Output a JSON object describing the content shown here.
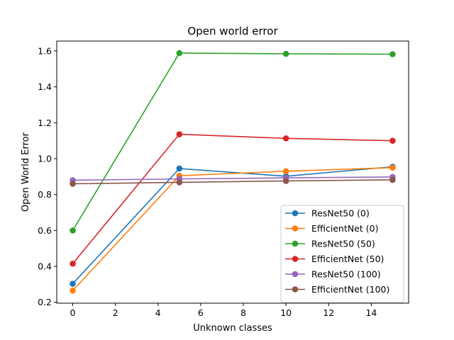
{
  "chart_data": {
    "type": "line",
    "title": "Open world error",
    "xlabel": "Unknown classes",
    "ylabel": "Open World Error",
    "x": [
      0,
      5,
      10,
      15
    ],
    "xlim": [
      -0.75,
      15.75
    ],
    "ylim": [
      0.195,
      1.655
    ],
    "xticks": [
      0,
      2,
      4,
      6,
      8,
      10,
      12,
      14
    ],
    "yticks": [
      0.2,
      0.4,
      0.6,
      0.8,
      1.0,
      1.2,
      1.4,
      1.6
    ],
    "ytick_labels": [
      "0.2",
      "0.4",
      "0.6",
      "0.8",
      "1.0",
      "1.2",
      "1.4",
      "1.6"
    ],
    "grid": false,
    "legend_position": "lower-right",
    "series": [
      {
        "name": "ResNet50 (0)",
        "color": "#1f77b4",
        "values": [
          0.303,
          0.945,
          0.902,
          0.955
        ]
      },
      {
        "name": "EfficientNet (0)",
        "color": "#ff7f0e",
        "values": [
          0.265,
          0.905,
          0.93,
          0.95
        ]
      },
      {
        "name": "ResNet50 (50)",
        "color": "#2ca02c",
        "values": [
          0.6,
          1.588,
          1.584,
          1.582
        ]
      },
      {
        "name": "EfficientNet (50)",
        "color": "#d62728",
        "values": [
          0.415,
          1.136,
          1.113,
          1.1
        ]
      },
      {
        "name": "ResNet50 (100)",
        "color": "#9467bd",
        "values": [
          0.88,
          0.887,
          0.893,
          0.898
        ]
      },
      {
        "name": "EfficientNet (100)",
        "color": "#8c564b",
        "values": [
          0.86,
          0.868,
          0.876,
          0.882
        ]
      }
    ]
  }
}
